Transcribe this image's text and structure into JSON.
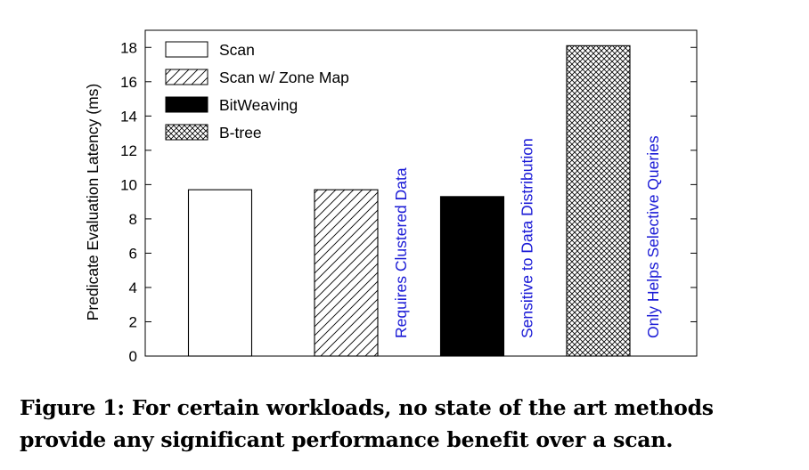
{
  "chart_data": {
    "type": "bar",
    "ylabel": "Predicate Evaluation Latency (ms)",
    "ylim": [
      0,
      19
    ],
    "yticks": [
      0,
      2,
      4,
      6,
      8,
      10,
      12,
      14,
      16,
      18
    ],
    "grid": false,
    "legend_position": "top-left",
    "series": [
      {
        "name": "Scan",
        "value": 9.7,
        "pattern": "none",
        "fill": "#ffffff"
      },
      {
        "name": "Scan w/ Zone Map",
        "value": 9.7,
        "pattern": "hatch",
        "fill": "#ffffff"
      },
      {
        "name": "BitWeaving",
        "value": 9.3,
        "pattern": "solid",
        "fill": "#000000"
      },
      {
        "name": "B-tree",
        "value": 18.1,
        "pattern": "crosshatch",
        "fill": "#ffffff"
      }
    ],
    "annotations": [
      {
        "after_series": 1,
        "text": "Requires Clustered Data"
      },
      {
        "after_series": 2,
        "text": "Sensitive to Data Distribution"
      },
      {
        "after_series": 3,
        "text": "Only Helps Selective Queries"
      }
    ],
    "annotation_color": "#1a1ad6"
  },
  "caption": {
    "line1": "Figure 1: For certain workloads, no state of the art methods",
    "line2": "provide any significant performance benefit over a scan."
  }
}
